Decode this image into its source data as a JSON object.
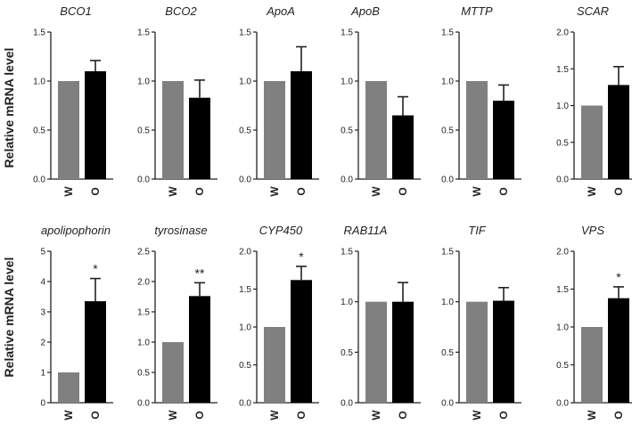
{
  "ylabel": "Relative mRNA level",
  "colors": {
    "bar_w": "#808080",
    "bar_o": "#000000",
    "axis": "#222222"
  },
  "chart_data": [
    {
      "type": "bar",
      "title": "BCO1",
      "categories": [
        "W",
        "O"
      ],
      "values": [
        1.0,
        1.1
      ],
      "errors": [
        0,
        0.11
      ],
      "ylim": [
        0,
        1.5
      ],
      "yticks": [
        "0.0",
        "0.5",
        "1.0",
        "1.5"
      ],
      "annotations": [
        "",
        ""
      ]
    },
    {
      "type": "bar",
      "title": "BCO2",
      "categories": [
        "W",
        "O"
      ],
      "values": [
        1.0,
        0.83
      ],
      "errors": [
        0,
        0.18
      ],
      "ylim": [
        0,
        1.5
      ],
      "yticks": [
        "0.0",
        "0.5",
        "1.0",
        "1.5"
      ],
      "annotations": [
        "",
        ""
      ]
    },
    {
      "type": "bar",
      "title": "ApoA",
      "categories": [
        "W",
        "O"
      ],
      "values": [
        1.0,
        1.1
      ],
      "errors": [
        0,
        0.25
      ],
      "ylim": [
        0,
        1.5
      ],
      "yticks": [
        "0.0",
        "0.5",
        "1.0",
        "1.5"
      ],
      "annotations": [
        "",
        ""
      ]
    },
    {
      "type": "bar",
      "title": "ApoB",
      "categories": [
        "W",
        "O"
      ],
      "values": [
        1.0,
        0.65
      ],
      "errors": [
        0,
        0.19
      ],
      "ylim": [
        0,
        1.5
      ],
      "yticks": [
        "0.0",
        "0.5",
        "1.0",
        "1.5"
      ],
      "annotations": [
        "",
        ""
      ]
    },
    {
      "type": "bar",
      "title": "MTTP",
      "categories": [
        "W",
        "O"
      ],
      "values": [
        1.0,
        0.8
      ],
      "errors": [
        0,
        0.16
      ],
      "ylim": [
        0,
        1.5
      ],
      "yticks": [
        "0.0",
        "0.5",
        "1.0",
        "1.5"
      ],
      "annotations": [
        "",
        ""
      ]
    },
    {
      "type": "bar",
      "title": "SCAR",
      "categories": [
        "W",
        "O"
      ],
      "values": [
        1.0,
        1.28
      ],
      "errors": [
        0,
        0.25
      ],
      "ylim": [
        0,
        2.0
      ],
      "yticks": [
        "0.0",
        "0.5",
        "1.0",
        "1.5",
        "2.0"
      ],
      "annotations": [
        "",
        ""
      ]
    },
    {
      "type": "bar",
      "title": "apolipophorin",
      "categories": [
        "W",
        "O"
      ],
      "values": [
        1.0,
        3.35
      ],
      "errors": [
        0,
        0.75
      ],
      "ylim": [
        0,
        5
      ],
      "yticks": [
        "0",
        "1",
        "2",
        "3",
        "4",
        "5"
      ],
      "annotations": [
        "",
        "*"
      ]
    },
    {
      "type": "bar",
      "title": "tyrosinase",
      "categories": [
        "W",
        "O"
      ],
      "values": [
        1.0,
        1.76
      ],
      "errors": [
        0,
        0.22
      ],
      "ylim": [
        0,
        2.5
      ],
      "yticks": [
        "0.0",
        "0.5",
        "1.0",
        "1.5",
        "2.0",
        "2.5"
      ],
      "annotations": [
        "",
        "**"
      ]
    },
    {
      "type": "bar",
      "title": "CYP450",
      "categories": [
        "W",
        "O"
      ],
      "values": [
        1.0,
        1.62
      ],
      "errors": [
        0,
        0.18
      ],
      "ylim": [
        0,
        2.0
      ],
      "yticks": [
        "0.0",
        "0.5",
        "1.0",
        "1.5",
        "2.0"
      ],
      "annotations": [
        "",
        "*"
      ]
    },
    {
      "type": "bar",
      "title": "RAB11A",
      "categories": [
        "W",
        "O"
      ],
      "values": [
        1.0,
        1.0
      ],
      "errors": [
        0,
        0.19
      ],
      "ylim": [
        0,
        1.5
      ],
      "yticks": [
        "0.0",
        "0.5",
        "1.0",
        "1.5"
      ],
      "annotations": [
        "",
        ""
      ]
    },
    {
      "type": "bar",
      "title": "TIF",
      "categories": [
        "W",
        "O"
      ],
      "values": [
        1.0,
        1.01
      ],
      "errors": [
        0,
        0.13
      ],
      "ylim": [
        0,
        1.5
      ],
      "yticks": [
        "0.0",
        "0.5",
        "1.0",
        "1.5"
      ],
      "annotations": [
        "",
        ""
      ]
    },
    {
      "type": "bar",
      "title": "VPS",
      "categories": [
        "W",
        "O"
      ],
      "values": [
        1.0,
        1.38
      ],
      "errors": [
        0,
        0.15
      ],
      "ylim": [
        0,
        2.0
      ],
      "yticks": [
        "0.0",
        "0.5",
        "1.0",
        "1.5",
        "2.0"
      ],
      "annotations": [
        "",
        "*"
      ]
    }
  ]
}
